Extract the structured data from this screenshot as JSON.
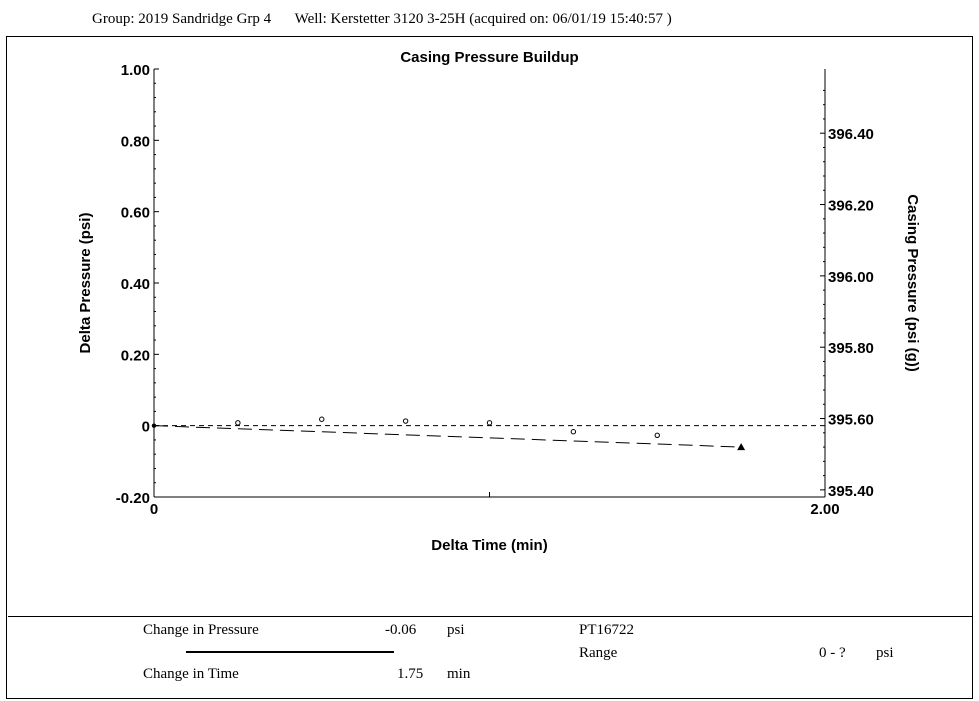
{
  "header": {
    "group": "Group: 2019 Sandridge Grp 4",
    "well": "Well: Kerstetter 3120 3-25H (acquired on: 06/01/19 15:40:57 )"
  },
  "chart_data": {
    "type": "scatter",
    "title": "Casing Pressure Buildup",
    "xlabel": "Delta Time (min)",
    "ylabel": "Delta Pressure (psi)",
    "y2label": "Casing Pressure (psi (g))",
    "xlim": [
      0,
      2.0
    ],
    "ylim": [
      -0.2,
      1.0
    ],
    "y2lim": [
      395.38,
      396.58
    ],
    "x_ticks": [
      "0",
      "2.00"
    ],
    "y_ticks": [
      {
        "value": 1.0,
        "label": "1.00"
      },
      {
        "value": 0.8,
        "label": "0.80"
      },
      {
        "value": 0.6,
        "label": "0.60"
      },
      {
        "value": 0.4,
        "label": "0.40"
      },
      {
        "value": 0.2,
        "label": "0.20"
      },
      {
        "value": 0.0,
        "label": "0"
      },
      {
        "value": -0.2,
        "label": "-0.20"
      }
    ],
    "y2_ticks": [
      {
        "value": 396.4,
        "label": "396.40"
      },
      {
        "value": 396.2,
        "label": "396.20"
      },
      {
        "value": 396.0,
        "label": "396.00"
      },
      {
        "value": 395.8,
        "label": "395.80"
      },
      {
        "value": 395.6,
        "label": "395.60"
      },
      {
        "value": 395.4,
        "label": "395.40"
      }
    ],
    "points": [
      {
        "x": 0.0,
        "y": 0.0
      },
      {
        "x": 0.25,
        "y": 0.008
      },
      {
        "x": 0.5,
        "y": 0.018
      },
      {
        "x": 0.75,
        "y": 0.013
      },
      {
        "x": 1.0,
        "y": 0.008
      },
      {
        "x": 1.25,
        "y": -0.017
      },
      {
        "x": 1.5,
        "y": -0.027
      },
      {
        "x": 1.75,
        "y": -0.06
      }
    ],
    "trend_line": [
      {
        "x": 0.0,
        "y": 0.0
      },
      {
        "x": 1.75,
        "y": -0.06
      }
    ],
    "reference_line_y": 0.0,
    "end_marker": {
      "x": 1.75,
      "y": -0.06
    }
  },
  "stats": {
    "change_pressure_label": "Change in Pressure",
    "change_pressure_value": "-0.06",
    "change_pressure_unit": "psi",
    "change_time_label": "Change in Time",
    "change_time_value": "1.75",
    "change_time_unit": "min",
    "sensor_id": "PT16722",
    "range_label": "Range",
    "range_value": "0 - ?",
    "range_unit": "psi"
  }
}
